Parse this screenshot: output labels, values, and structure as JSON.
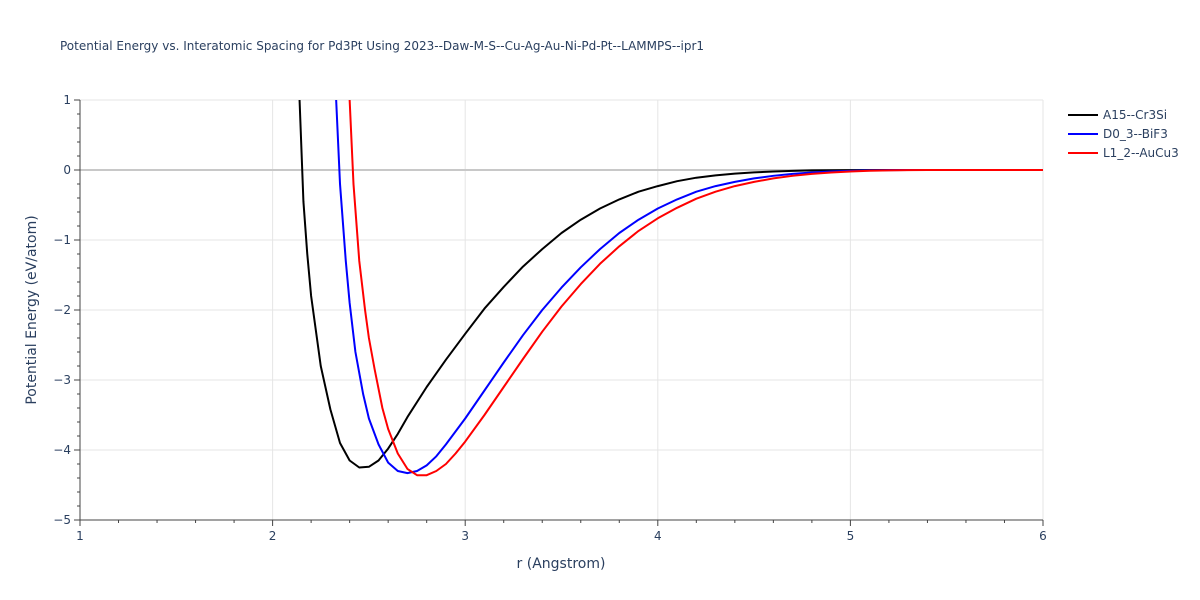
{
  "chart_data": {
    "type": "line",
    "title": "Potential Energy vs. Interatomic Spacing for Pd3Pt Using 2023--Daw-M-S--Cu-Ag-Au-Ni-Pd-Pt--LAMMPS--ipr1",
    "xlabel": "r (Angstrom)",
    "ylabel": "Potential Energy (eV/atom)",
    "xlim": [
      1,
      6
    ],
    "ylim": [
      -5,
      1
    ],
    "x_ticks": [
      1,
      2,
      3,
      4,
      5,
      6
    ],
    "y_ticks": [
      1,
      0,
      -1,
      -2,
      -3,
      -4,
      -5
    ],
    "x_tick_labels": [
      "1",
      "2",
      "3",
      "4",
      "5",
      "6"
    ],
    "y_tick_labels": [
      "1",
      "0",
      "−1",
      "−2",
      "−3",
      "−4",
      "−5"
    ],
    "grid": true,
    "legend_position": "top-right",
    "series": [
      {
        "name": "A15--Cr3Si",
        "color": "#000000",
        "points": [
          [
            2.14,
            1.0
          ],
          [
            2.16,
            -0.45
          ],
          [
            2.18,
            -1.2
          ],
          [
            2.2,
            -1.8
          ],
          [
            2.23,
            -2.4
          ],
          [
            2.25,
            -2.8
          ],
          [
            2.3,
            -3.42
          ],
          [
            2.35,
            -3.9
          ],
          [
            2.4,
            -4.15
          ],
          [
            2.45,
            -4.25
          ],
          [
            2.5,
            -4.24
          ],
          [
            2.55,
            -4.15
          ],
          [
            2.6,
            -3.98
          ],
          [
            2.65,
            -3.77
          ],
          [
            2.7,
            -3.53
          ],
          [
            2.8,
            -3.1
          ],
          [
            2.9,
            -2.71
          ],
          [
            3.0,
            -2.34
          ],
          [
            3.1,
            -1.98
          ],
          [
            3.2,
            -1.67
          ],
          [
            3.3,
            -1.38
          ],
          [
            3.4,
            -1.13
          ],
          [
            3.5,
            -0.9
          ],
          [
            3.6,
            -0.71
          ],
          [
            3.7,
            -0.55
          ],
          [
            3.8,
            -0.42
          ],
          [
            3.9,
            -0.31
          ],
          [
            4.0,
            -0.23
          ],
          [
            4.1,
            -0.16
          ],
          [
            4.2,
            -0.11
          ],
          [
            4.3,
            -0.077
          ],
          [
            4.4,
            -0.052
          ],
          [
            4.5,
            -0.034
          ],
          [
            4.6,
            -0.021
          ],
          [
            4.7,
            -0.012
          ],
          [
            4.8,
            -0.006
          ],
          [
            4.9,
            -0.003
          ],
          [
            5.0,
            -0.001
          ],
          [
            5.2,
            0.0
          ],
          [
            6.0,
            0.0
          ]
        ]
      },
      {
        "name": "D0_3--BiF3",
        "color": "#0000ff",
        "points": [
          [
            2.33,
            1.0
          ],
          [
            2.35,
            -0.2
          ],
          [
            2.38,
            -1.3
          ],
          [
            2.4,
            -1.9
          ],
          [
            2.43,
            -2.6
          ],
          [
            2.47,
            -3.2
          ],
          [
            2.5,
            -3.55
          ],
          [
            2.55,
            -3.92
          ],
          [
            2.6,
            -4.18
          ],
          [
            2.65,
            -4.3
          ],
          [
            2.7,
            -4.33
          ],
          [
            2.75,
            -4.3
          ],
          [
            2.8,
            -4.22
          ],
          [
            2.85,
            -4.09
          ],
          [
            2.9,
            -3.92
          ],
          [
            3.0,
            -3.55
          ],
          [
            3.1,
            -3.15
          ],
          [
            3.2,
            -2.75
          ],
          [
            3.3,
            -2.36
          ],
          [
            3.4,
            -2.0
          ],
          [
            3.5,
            -1.68
          ],
          [
            3.6,
            -1.39
          ],
          [
            3.7,
            -1.13
          ],
          [
            3.8,
            -0.9
          ],
          [
            3.9,
            -0.71
          ],
          [
            4.0,
            -0.55
          ],
          [
            4.1,
            -0.42
          ],
          [
            4.2,
            -0.31
          ],
          [
            4.3,
            -0.23
          ],
          [
            4.4,
            -0.17
          ],
          [
            4.5,
            -0.12
          ],
          [
            4.6,
            -0.083
          ],
          [
            4.7,
            -0.056
          ],
          [
            4.8,
            -0.036
          ],
          [
            4.9,
            -0.022
          ],
          [
            5.0,
            -0.012
          ],
          [
            5.1,
            -0.006
          ],
          [
            5.2,
            -0.002
          ],
          [
            5.3,
            0.0
          ],
          [
            6.0,
            0.0
          ]
        ]
      },
      {
        "name": "L1_2--AuCu3",
        "color": "#ff0000",
        "points": [
          [
            2.4,
            1.0
          ],
          [
            2.42,
            -0.2
          ],
          [
            2.45,
            -1.3
          ],
          [
            2.48,
            -2.0
          ],
          [
            2.5,
            -2.4
          ],
          [
            2.53,
            -2.85
          ],
          [
            2.57,
            -3.4
          ],
          [
            2.6,
            -3.7
          ],
          [
            2.65,
            -4.05
          ],
          [
            2.7,
            -4.27
          ],
          [
            2.75,
            -4.36
          ],
          [
            2.8,
            -4.36
          ],
          [
            2.85,
            -4.3
          ],
          [
            2.9,
            -4.2
          ],
          [
            2.95,
            -4.05
          ],
          [
            3.0,
            -3.88
          ],
          [
            3.1,
            -3.5
          ],
          [
            3.2,
            -3.1
          ],
          [
            3.3,
            -2.7
          ],
          [
            3.4,
            -2.31
          ],
          [
            3.5,
            -1.95
          ],
          [
            3.6,
            -1.63
          ],
          [
            3.7,
            -1.34
          ],
          [
            3.8,
            -1.09
          ],
          [
            3.9,
            -0.87
          ],
          [
            4.0,
            -0.69
          ],
          [
            4.1,
            -0.54
          ],
          [
            4.2,
            -0.41
          ],
          [
            4.3,
            -0.31
          ],
          [
            4.4,
            -0.23
          ],
          [
            4.5,
            -0.17
          ],
          [
            4.6,
            -0.12
          ],
          [
            4.7,
            -0.083
          ],
          [
            4.8,
            -0.055
          ],
          [
            4.9,
            -0.035
          ],
          [
            5.0,
            -0.021
          ],
          [
            5.1,
            -0.011
          ],
          [
            5.2,
            -0.005
          ],
          [
            5.3,
            -0.001
          ],
          [
            5.4,
            0.0
          ],
          [
            6.0,
            0.0
          ]
        ]
      }
    ]
  }
}
